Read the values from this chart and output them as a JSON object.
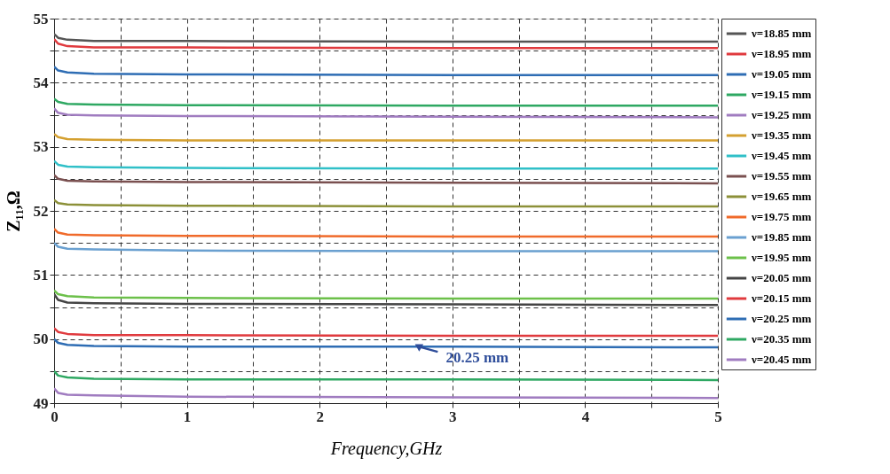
{
  "chart_data": {
    "type": "line",
    "xlabel": "Frequency,GHz",
    "ylabel": "Z₁₁,Ω",
    "x": [
      0,
      0.03,
      0.1,
      0.3,
      1,
      3,
      5
    ],
    "xlim": [
      0,
      5
    ],
    "xticks": [
      0,
      {
        "value": 0.5,
        "label": null
      },
      1,
      {
        "value": 1.5,
        "label": null
      },
      2,
      {
        "value": 2.5,
        "label": null
      },
      3,
      {
        "value": 3.5,
        "label": null
      },
      4,
      {
        "value": 4.5,
        "label": null
      },
      5
    ],
    "ylim": [
      49,
      55
    ],
    "yticks": [
      49,
      {
        "value": 49.5,
        "label": null
      },
      50,
      {
        "value": 50.5,
        "label": null
      },
      51,
      {
        "value": 51.5,
        "label": null
      },
      52,
      {
        "value": 52.5,
        "label": null
      },
      53,
      {
        "value": 53.5,
        "label": null
      },
      54,
      {
        "value": 54.5,
        "label": null
      },
      55
    ],
    "grid": true,
    "legend": "top right",
    "marker": "none",
    "line_style": "solid",
    "annotations": [
      {
        "text": "20.25 mm",
        "x": 2.75,
        "y": 49.88
      }
    ],
    "series": [
      {
        "name": "ν=18.85 mm",
        "color": "#555555",
        "values": [
          54.76,
          54.7,
          54.67,
          54.65,
          54.65,
          54.64,
          54.64
        ]
      },
      {
        "name": "ν=18.95 mm",
        "color": "#e03a3e",
        "values": [
          54.68,
          54.61,
          54.57,
          54.55,
          54.55,
          54.54,
          54.54
        ]
      },
      {
        "name": "ν=19.05 mm",
        "color": "#2e6db4",
        "values": [
          54.25,
          54.19,
          54.16,
          54.14,
          54.13,
          54.12,
          54.12
        ]
      },
      {
        "name": "ν=19.15 mm",
        "color": "#2ea862",
        "values": [
          53.75,
          53.7,
          53.67,
          53.66,
          53.65,
          53.64,
          53.64
        ]
      },
      {
        "name": "ν=19.25 mm",
        "color": "#a07cc0",
        "values": [
          53.6,
          53.53,
          53.5,
          53.49,
          53.48,
          53.47,
          53.46
        ]
      },
      {
        "name": "ν=19.35 mm",
        "color": "#d4a030",
        "values": [
          53.2,
          53.15,
          53.12,
          53.11,
          53.1,
          53.1,
          53.1
        ]
      },
      {
        "name": "ν=19.45 mm",
        "color": "#30c0c8",
        "values": [
          52.78,
          52.72,
          52.69,
          52.68,
          52.67,
          52.66,
          52.66
        ]
      },
      {
        "name": "ν=19.55 mm",
        "color": "#7a5050",
        "values": [
          52.56,
          52.5,
          52.47,
          52.46,
          52.45,
          52.44,
          52.43
        ]
      },
      {
        "name": "ν=19.65 mm",
        "color": "#8c9038",
        "values": [
          52.17,
          52.12,
          52.1,
          52.09,
          52.08,
          52.07,
          52.07
        ]
      },
      {
        "name": "ν=19.75 mm",
        "color": "#f06a2a",
        "values": [
          51.72,
          51.66,
          51.63,
          51.62,
          51.61,
          51.6,
          51.6
        ]
      },
      {
        "name": "ν=19.85 mm",
        "color": "#6aa0d0",
        "values": [
          51.5,
          51.44,
          51.41,
          51.4,
          51.38,
          51.37,
          51.37
        ]
      },
      {
        "name": "ν=19.95 mm",
        "color": "#6cc04a",
        "values": [
          50.76,
          50.7,
          50.67,
          50.65,
          50.64,
          50.63,
          50.63
        ]
      },
      {
        "name": "ν=20.05 mm",
        "color": "#444444",
        "values": [
          50.7,
          50.61,
          50.57,
          50.56,
          50.55,
          50.54,
          50.53
        ]
      },
      {
        "name": "ν=20.15 mm",
        "color": "#e03a3e",
        "values": [
          50.17,
          50.11,
          50.08,
          50.06,
          50.06,
          50.05,
          50.05
        ]
      },
      {
        "name": "ν=20.25 mm",
        "color": "#2e6db4",
        "values": [
          50.0,
          49.94,
          49.91,
          49.89,
          49.88,
          49.88,
          49.87
        ]
      },
      {
        "name": "ν=20.35 mm",
        "color": "#2ea862",
        "values": [
          49.5,
          49.43,
          49.4,
          49.38,
          49.37,
          49.37,
          49.36
        ]
      },
      {
        "name": "ν=20.45 mm",
        "color": "#a07cc0",
        "values": [
          49.23,
          49.16,
          49.13,
          49.12,
          49.1,
          49.09,
          49.08
        ]
      }
    ]
  }
}
